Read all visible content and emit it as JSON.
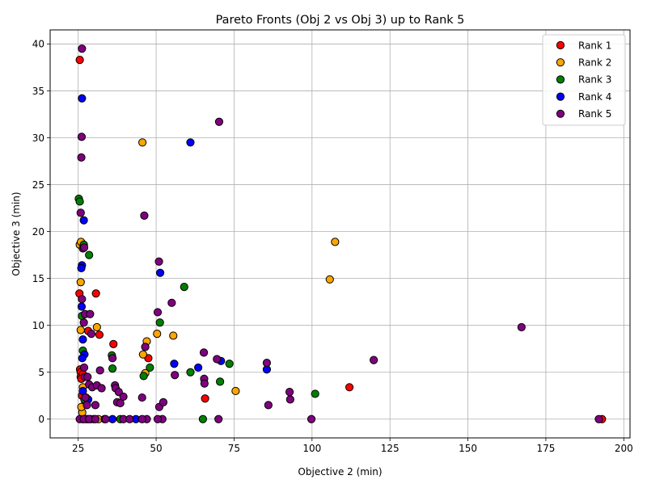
{
  "chart_data": {
    "type": "scatter",
    "title": "Pareto Fronts (Obj 2 vs Obj 3) up to Rank 5",
    "xlabel": "Objective 2 (min)",
    "ylabel": "Objective 3 (min)",
    "xlim": [
      16,
      202
    ],
    "ylim": [
      -2,
      41.5
    ],
    "xticks": [
      25,
      50,
      75,
      100,
      125,
      150,
      175,
      200
    ],
    "yticks": [
      0,
      5,
      10,
      15,
      20,
      25,
      30,
      35,
      40
    ],
    "grid": true,
    "legend_position": "top-right",
    "series": [
      {
        "name": "Rank 1",
        "color": "#ff0000",
        "points": [
          [
            25.5,
            38.3
          ],
          [
            25.4,
            13.4
          ],
          [
            25.6,
            5.3
          ],
          [
            25.8,
            5.0
          ],
          [
            25.8,
            4.5
          ],
          [
            26.5,
            4.8
          ],
          [
            26.0,
            4.3
          ],
          [
            30.7,
            13.4
          ],
          [
            31.8,
            9.0
          ],
          [
            28.2,
            9.4
          ],
          [
            36.3,
            8.0
          ],
          [
            47.5,
            6.5
          ],
          [
            65.7,
            2.2
          ],
          [
            112.0,
            3.4
          ],
          [
            193.0,
            0.0
          ],
          [
            26.5,
            0.0
          ],
          [
            28.0,
            0.0
          ],
          [
            30.0,
            0.0
          ],
          [
            26.2,
            2.5
          ],
          [
            27.0,
            1.5
          ]
        ]
      },
      {
        "name": "Rank 2",
        "color": "#ffa500",
        "points": [
          [
            25.5,
            18.6
          ],
          [
            25.9,
            18.9
          ],
          [
            25.8,
            14.6
          ],
          [
            25.8,
            9.5
          ],
          [
            26.3,
            0.7
          ],
          [
            26.5,
            3.4
          ],
          [
            31.0,
            9.8
          ],
          [
            45.6,
            29.5
          ],
          [
            45.8,
            6.9
          ],
          [
            47.0,
            8.3
          ],
          [
            46.5,
            4.9
          ],
          [
            50.3,
            9.1
          ],
          [
            55.5,
            8.9
          ],
          [
            75.5,
            3.0
          ],
          [
            105.7,
            14.9
          ],
          [
            107.4,
            18.9
          ],
          [
            27.5,
            0.0
          ],
          [
            29.0,
            0.0
          ],
          [
            31.5,
            0.0
          ],
          [
            26.0,
            1.3
          ]
        ]
      },
      {
        "name": "Rank 3",
        "color": "#008000",
        "points": [
          [
            25.2,
            23.5
          ],
          [
            25.5,
            23.2
          ],
          [
            26.8,
            18.6
          ],
          [
            28.5,
            17.5
          ],
          [
            26.2,
            11.0
          ],
          [
            26.5,
            7.3
          ],
          [
            35.8,
            6.8
          ],
          [
            36.0,
            5.4
          ],
          [
            46.0,
            4.6
          ],
          [
            48.0,
            5.5
          ],
          [
            51.2,
            10.3
          ],
          [
            59.0,
            14.1
          ],
          [
            61.0,
            5.0
          ],
          [
            65.0,
            0.0
          ],
          [
            70.5,
            4.0
          ],
          [
            73.5,
            5.9
          ],
          [
            101.0,
            2.7
          ],
          [
            27.0,
            2.1
          ],
          [
            27.8,
            4.5
          ],
          [
            38.5,
            0.0
          ]
        ]
      },
      {
        "name": "Rank 4",
        "color": "#0000ff",
        "points": [
          [
            26.2,
            34.2
          ],
          [
            26.8,
            21.2
          ],
          [
            26.2,
            16.4
          ],
          [
            26.0,
            16.1
          ],
          [
            26.1,
            12.0
          ],
          [
            26.5,
            8.5
          ],
          [
            27.0,
            6.9
          ],
          [
            26.3,
            6.5
          ],
          [
            26.5,
            3.0
          ],
          [
            27.5,
            2.3
          ],
          [
            28.2,
            2.1
          ],
          [
            33.5,
            0.0
          ],
          [
            36.0,
            0.0
          ],
          [
            43.5,
            0.0
          ],
          [
            51.3,
            15.6
          ],
          [
            55.8,
            5.9
          ],
          [
            61.0,
            29.5
          ],
          [
            63.5,
            5.5
          ],
          [
            70.8,
            6.2
          ],
          [
            85.5,
            5.3
          ]
        ]
      },
      {
        "name": "Rank 5",
        "color": "#800080",
        "points": [
          [
            26.2,
            39.5
          ],
          [
            26.1,
            30.1
          ],
          [
            26.0,
            27.9
          ],
          [
            25.8,
            22.0
          ],
          [
            26.5,
            18.2
          ],
          [
            26.9,
            18.3
          ],
          [
            26.2,
            12.8
          ],
          [
            27.2,
            11.2
          ],
          [
            28.8,
            11.2
          ],
          [
            26.8,
            10.3
          ],
          [
            29.2,
            9.1
          ],
          [
            26.9,
            5.5
          ],
          [
            27.1,
            4.5
          ],
          [
            28.0,
            4.5
          ],
          [
            28.5,
            3.7
          ],
          [
            29.5,
            3.4
          ],
          [
            27.3,
            2.3
          ],
          [
            27.8,
            1.5
          ],
          [
            30.5,
            1.5
          ],
          [
            31.0,
            3.6
          ],
          [
            32.0,
            5.2
          ],
          [
            32.5,
            3.3
          ],
          [
            36.0,
            6.5
          ],
          [
            36.8,
            3.6
          ],
          [
            37.0,
            3.3
          ],
          [
            37.5,
            1.8
          ],
          [
            38.0,
            2.9
          ],
          [
            38.5,
            1.7
          ],
          [
            39.5,
            2.4
          ],
          [
            45.5,
            2.3
          ],
          [
            46.2,
            21.7
          ],
          [
            46.5,
            7.7
          ],
          [
            47.0,
            0.0
          ],
          [
            50.5,
            11.4
          ],
          [
            50.9,
            16.8
          ],
          [
            51.0,
            1.3
          ],
          [
            52.3,
            1.8
          ],
          [
            55.0,
            12.4
          ],
          [
            56.0,
            4.7
          ],
          [
            65.3,
            7.1
          ],
          [
            65.4,
            4.3
          ],
          [
            65.5,
            3.8
          ],
          [
            69.5,
            6.4
          ],
          [
            70.2,
            31.7
          ],
          [
            70.0,
            0.0
          ],
          [
            85.5,
            6.0
          ],
          [
            86.0,
            1.5
          ],
          [
            92.8,
            2.9
          ],
          [
            93.0,
            2.1
          ],
          [
            99.8,
            0.0
          ],
          [
            119.8,
            6.3
          ],
          [
            167.2,
            9.8
          ],
          [
            192.0,
            0.0
          ],
          [
            25.5,
            0.0
          ],
          [
            26.8,
            0.0
          ],
          [
            28.5,
            0.0
          ],
          [
            30.5,
            0.0
          ],
          [
            33.8,
            0.0
          ],
          [
            39.5,
            0.0
          ],
          [
            41.5,
            0.0
          ],
          [
            45.5,
            0.0
          ],
          [
            52.0,
            0.0
          ],
          [
            50.5,
            0.0
          ]
        ]
      }
    ]
  }
}
